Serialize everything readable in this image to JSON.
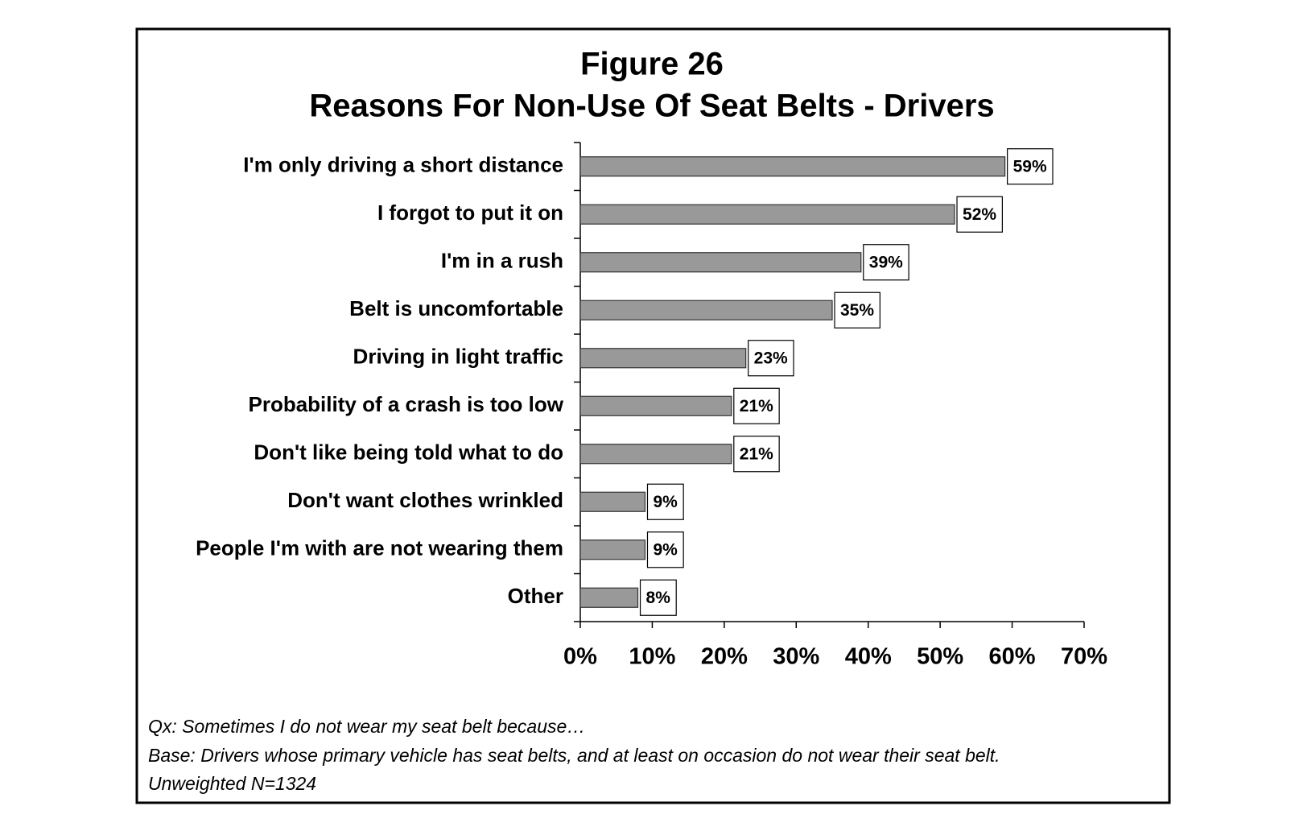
{
  "chart_data": {
    "type": "bar",
    "orientation": "horizontal",
    "title": [
      "Figure 26",
      "Reasons For Non-Use Of Seat Belts - Drivers"
    ],
    "categories": [
      "I'm only driving a short distance",
      "I forgot to put it on",
      "I'm in a rush",
      "Belt is uncomfortable",
      "Driving in light traffic",
      "Probability of a crash is too low",
      "Don't like being told what to do",
      "Don't want clothes wrinkled",
      "People I'm with are not wearing them",
      "Other"
    ],
    "values": [
      59,
      52,
      39,
      35,
      23,
      21,
      21,
      9,
      9,
      8
    ],
    "value_labels": [
      "59%",
      "52%",
      "39%",
      "35%",
      "23%",
      "21%",
      "21%",
      "9%",
      "9%",
      "8%"
    ],
    "color": "#999999",
    "xlim": [
      0,
      70
    ],
    "xticks": [
      {
        "value": 0,
        "label": "0%"
      },
      {
        "value": 10,
        "label": "10%"
      },
      {
        "value": 20,
        "label": "20%"
      },
      {
        "value": 30,
        "label": "30%"
      },
      {
        "value": 40,
        "label": "40%"
      },
      {
        "value": 50,
        "label": "50%"
      },
      {
        "value": 60,
        "label": "60%"
      },
      {
        "value": 70,
        "label": "70%"
      }
    ],
    "notes": [
      "Qx:  Sometimes I do not wear my seat belt because…",
      "Base:  Drivers whose primary vehicle has seat belts, and at least on occasion do not wear their seat belt.",
      "Unweighted N=1324"
    ]
  }
}
